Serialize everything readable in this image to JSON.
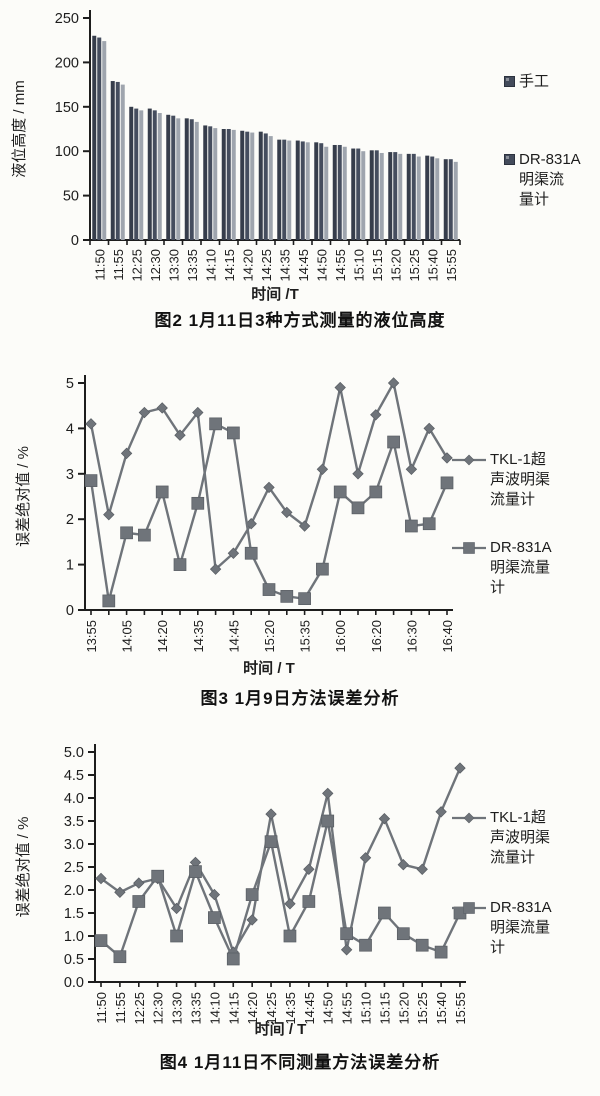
{
  "page": {
    "background": "#fcfcf9",
    "ink": "#1d1d1d",
    "line_gray": "#6f747a",
    "bar_dark1": "#363d4b",
    "bar_dark2": "#454d5e",
    "bar_gray": "#9fa5ae"
  },
  "chart_data": [
    {
      "type": "bar",
      "caption": "图2  1月11日3种方式测量的液位高度",
      "xlabel": "时间 /T",
      "ylabel": "液位高度 / mm",
      "ylim": [
        0,
        250
      ],
      "yticks": [
        0,
        50,
        100,
        150,
        200,
        250
      ],
      "ytick_decimals": 0,
      "grid": false,
      "legend_position": "right",
      "categories": [
        "11:50",
        "11:55",
        "12:25",
        "12:30",
        "13:30",
        "13:35",
        "14:10",
        "14:15",
        "14:20",
        "14:25",
        "14:35",
        "14:45",
        "14:50",
        "14:55",
        "15:10",
        "15:15",
        "15:20",
        "15:25",
        "15:40",
        "15:55"
      ],
      "series": [
        {
          "name": "手工",
          "color": "#363d4b",
          "values": [
            230,
            179,
            150,
            148,
            141,
            137,
            129,
            125,
            123,
            122,
            113,
            112,
            110,
            107,
            103,
            101,
            99,
            97,
            95,
            91
          ]
        },
        {
          "name": "",
          "color": "#454d5e",
          "values": [
            228,
            178,
            148,
            146,
            140,
            136,
            128,
            125,
            122,
            120,
            113,
            111,
            109,
            107,
            103,
            101,
            99,
            97,
            94,
            91
          ]
        },
        {
          "name": "DR-831A明渠流量计",
          "color": "#9fa5ae",
          "values": [
            224,
            175,
            146,
            143,
            137,
            133,
            126,
            124,
            121,
            117,
            112,
            110,
            105,
            105,
            100,
            98,
            97,
            94,
            92,
            88
          ]
        }
      ],
      "legend": [
        {
          "label": "手工",
          "lines": "手工",
          "marker": "square-swatch"
        },
        {
          "label": "DR-831A明渠流量计",
          "lines": "DR-831A\n明渠流\n量计",
          "marker": "square-swatch"
        }
      ]
    },
    {
      "type": "line",
      "caption": "图3  1月9日方法误差分析",
      "xlabel": "时间 / T",
      "ylabel": "误差绝对值 / %",
      "ylim": [
        0,
        5
      ],
      "yticks": [
        0,
        1,
        2,
        3,
        4,
        5
      ],
      "ytick_decimals": 0,
      "grid": false,
      "legend_position": "right",
      "categories": [
        "13:55",
        "",
        "14:05",
        "",
        "14:20",
        "",
        "14:35",
        "",
        "14:45",
        "",
        "15:20",
        "",
        "15:35",
        "",
        "16:00",
        "",
        "16:20",
        "",
        "16:30",
        "",
        "16:40"
      ],
      "series": [
        {
          "name": "TKL-1超声波明渠流量计",
          "marker": "diamond",
          "color": "#6f747a",
          "values": [
            4.1,
            2.1,
            3.45,
            4.35,
            4.45,
            3.85,
            4.35,
            0.9,
            1.25,
            1.9,
            2.7,
            2.15,
            1.85,
            3.1,
            4.9,
            3.0,
            4.3,
            5.0,
            3.1,
            4.0,
            3.35
          ]
        },
        {
          "name": "DR-831A明渠流量计",
          "marker": "square",
          "color": "#6f747a",
          "values": [
            2.85,
            0.2,
            1.7,
            1.65,
            2.6,
            1.0,
            2.35,
            4.1,
            3.9,
            1.25,
            0.45,
            0.3,
            0.25,
            0.9,
            2.6,
            2.25,
            2.6,
            3.7,
            1.85,
            1.9,
            2.8
          ]
        }
      ],
      "legend": [
        {
          "label": "TKL-1超声波明渠流量计",
          "lines": "TKL-1超\n声波明渠\n流量计",
          "marker": "line-diamond"
        },
        {
          "label": "DR-831A明渠流量计",
          "lines": "DR-831A\n明渠流量\n计",
          "marker": "line-square"
        }
      ]
    },
    {
      "type": "line",
      "caption": "图4  1月11日不同测量方法误差分析",
      "xlabel": "时间 / T",
      "ylabel": "误差绝对值 / %",
      "ylim": [
        0,
        5
      ],
      "yticks": [
        0,
        0.5,
        1,
        1.5,
        2,
        2.5,
        3,
        3.5,
        4,
        4.5,
        5
      ],
      "ytick_decimals": 1,
      "grid": false,
      "legend_position": "right",
      "categories": [
        "11:50",
        "11:55",
        "12:25",
        "12:30",
        "13:30",
        "13:35",
        "14:10",
        "14:15",
        "14:20",
        "14:25",
        "14:35",
        "14:45",
        "14:50",
        "14:55",
        "15:10",
        "15:15",
        "15:20",
        "15:25",
        "15:40",
        "15:55"
      ],
      "series": [
        {
          "name": "TKL-1超声波明渠流量计",
          "marker": "diamond",
          "color": "#6f747a",
          "values": [
            2.25,
            1.95,
            2.15,
            2.25,
            1.6,
            2.6,
            1.9,
            0.65,
            1.35,
            3.65,
            1.7,
            2.45,
            4.1,
            0.7,
            2.7,
            3.55,
            2.55,
            2.45,
            3.7,
            4.65
          ]
        },
        {
          "name": "DR-831A明渠流量计",
          "marker": "square",
          "color": "#6f747a",
          "values": [
            0.9,
            0.55,
            1.75,
            2.3,
            1.0,
            2.4,
            1.4,
            0.5,
            1.9,
            3.05,
            1.0,
            1.75,
            3.5,
            1.05,
            0.8,
            1.5,
            1.05,
            0.8,
            0.65,
            1.5
          ]
        }
      ],
      "legend": [
        {
          "label": "TKL-1超声波明渠流量计",
          "lines": "TKL-1超\n声波明渠\n流量计",
          "marker": "line-diamond"
        },
        {
          "label": "DR-831A明渠流量计",
          "lines": "DR-831A\n明渠流量\n计",
          "marker": "line-square"
        }
      ]
    }
  ]
}
